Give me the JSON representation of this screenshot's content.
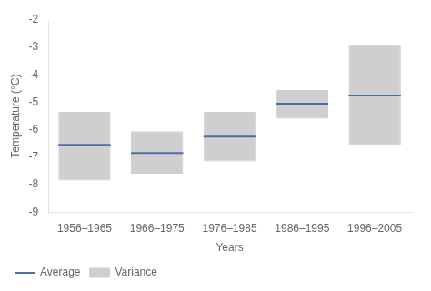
{
  "chart_data": {
    "type": "bar",
    "categories": [
      "1956–1965",
      "1966–1975",
      "1976–1985",
      "1986–1995",
      "1996–2005"
    ],
    "series": [
      {
        "name": "Variance",
        "type": "bar",
        "color": "#d0cece",
        "low": [
          -7.85,
          -7.6,
          -7.15,
          -5.6,
          -6.55
        ],
        "high": [
          -5.35,
          -6.05,
          -5.35,
          -4.55,
          -2.9
        ]
      },
      {
        "name": "Average",
        "type": "line",
        "marker": "line",
        "color": "#4a6fa5",
        "values": [
          -6.55,
          -6.85,
          -6.25,
          -5.05,
          -4.75
        ]
      }
    ],
    "xlabel": "Years",
    "ylabel": "Temperature (°C)",
    "ylim": [
      -9,
      -2
    ],
    "yticks": [
      -9,
      -8,
      -7,
      -6,
      -5,
      -4,
      -3,
      -2
    ],
    "grid": false,
    "legend": "lower left"
  }
}
